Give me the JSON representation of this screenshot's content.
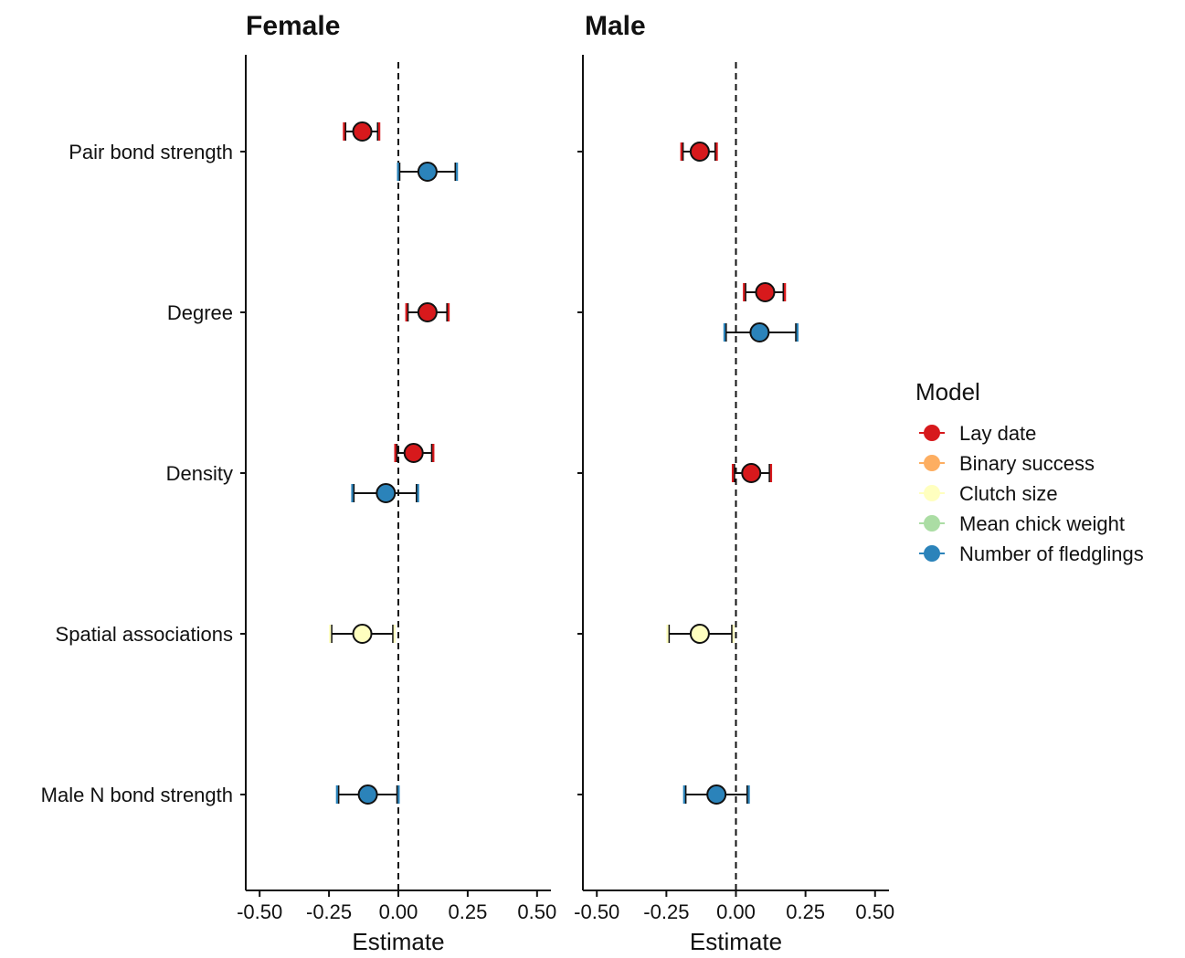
{
  "chart_data": {
    "type": "forest",
    "categories": [
      "Pair bond strength",
      "Degree",
      "Density",
      "Spatial associations",
      "Male N bond strength"
    ],
    "xlim": [
      -0.55,
      0.55
    ],
    "x_ticks": [
      -0.5,
      -0.25,
      0,
      0.25,
      0.5
    ],
    "x_tick_labels": [
      "-0.50",
      "-0.25",
      "0.00",
      "0.25",
      "0.50"
    ],
    "reference_line": 0,
    "legend": {
      "title": "Model",
      "placement": "right",
      "entries": [
        {
          "name": "Lay date",
          "color": "#d7191c"
        },
        {
          "name": "Binary success",
          "color": "#fdae61"
        },
        {
          "name": "Clutch size",
          "color": "#ffffbf"
        },
        {
          "name": "Mean chick weight",
          "color": "#abdda4"
        },
        {
          "name": "Number of fledglings",
          "color": "#2b83ba"
        }
      ]
    },
    "panels": [
      {
        "title": "Female",
        "xlabel": "Estimate",
        "points": [
          {
            "category": "Pair bond strength",
            "model": "Lay date",
            "estimate": -0.13,
            "lower": -0.195,
            "upper": -0.07,
            "offset": -1
          },
          {
            "category": "Pair bond strength",
            "model": "Number of fledglings",
            "estimate": 0.105,
            "lower": 0.0,
            "upper": 0.21,
            "offset": 1
          },
          {
            "category": "Degree",
            "model": "Lay date",
            "estimate": 0.105,
            "lower": 0.03,
            "upper": 0.18,
            "offset": 0
          },
          {
            "category": "Density",
            "model": "Lay date",
            "estimate": 0.055,
            "lower": -0.01,
            "upper": 0.125,
            "offset": -1
          },
          {
            "category": "Density",
            "model": "Number of fledglings",
            "estimate": -0.045,
            "lower": -0.165,
            "upper": 0.07,
            "offset": 1
          },
          {
            "category": "Spatial associations",
            "model": "Clutch size",
            "estimate": -0.13,
            "lower": -0.245,
            "upper": -0.015,
            "offset": 0
          },
          {
            "category": "Male N bond strength",
            "model": "Number of fledglings",
            "estimate": -0.11,
            "lower": -0.22,
            "upper": 0.0,
            "offset": 0
          }
        ]
      },
      {
        "title": "Male",
        "xlabel": "Estimate",
        "points": [
          {
            "category": "Pair bond strength",
            "model": "Lay date",
            "estimate": -0.13,
            "lower": -0.195,
            "upper": -0.07,
            "offset": 0
          },
          {
            "category": "Degree",
            "model": "Lay date",
            "estimate": 0.105,
            "lower": 0.03,
            "upper": 0.175,
            "offset": -1
          },
          {
            "category": "Degree",
            "model": "Number of fledglings",
            "estimate": 0.085,
            "lower": -0.04,
            "upper": 0.22,
            "offset": 1
          },
          {
            "category": "Density",
            "model": "Lay date",
            "estimate": 0.055,
            "lower": -0.01,
            "upper": 0.125,
            "offset": 0
          },
          {
            "category": "Spatial associations",
            "model": "Clutch size",
            "estimate": -0.13,
            "lower": -0.245,
            "upper": -0.01,
            "offset": 0
          },
          {
            "category": "Male N bond strength",
            "model": "Number of fledglings",
            "estimate": -0.07,
            "lower": -0.185,
            "upper": 0.045,
            "offset": 0
          }
        ]
      }
    ]
  }
}
